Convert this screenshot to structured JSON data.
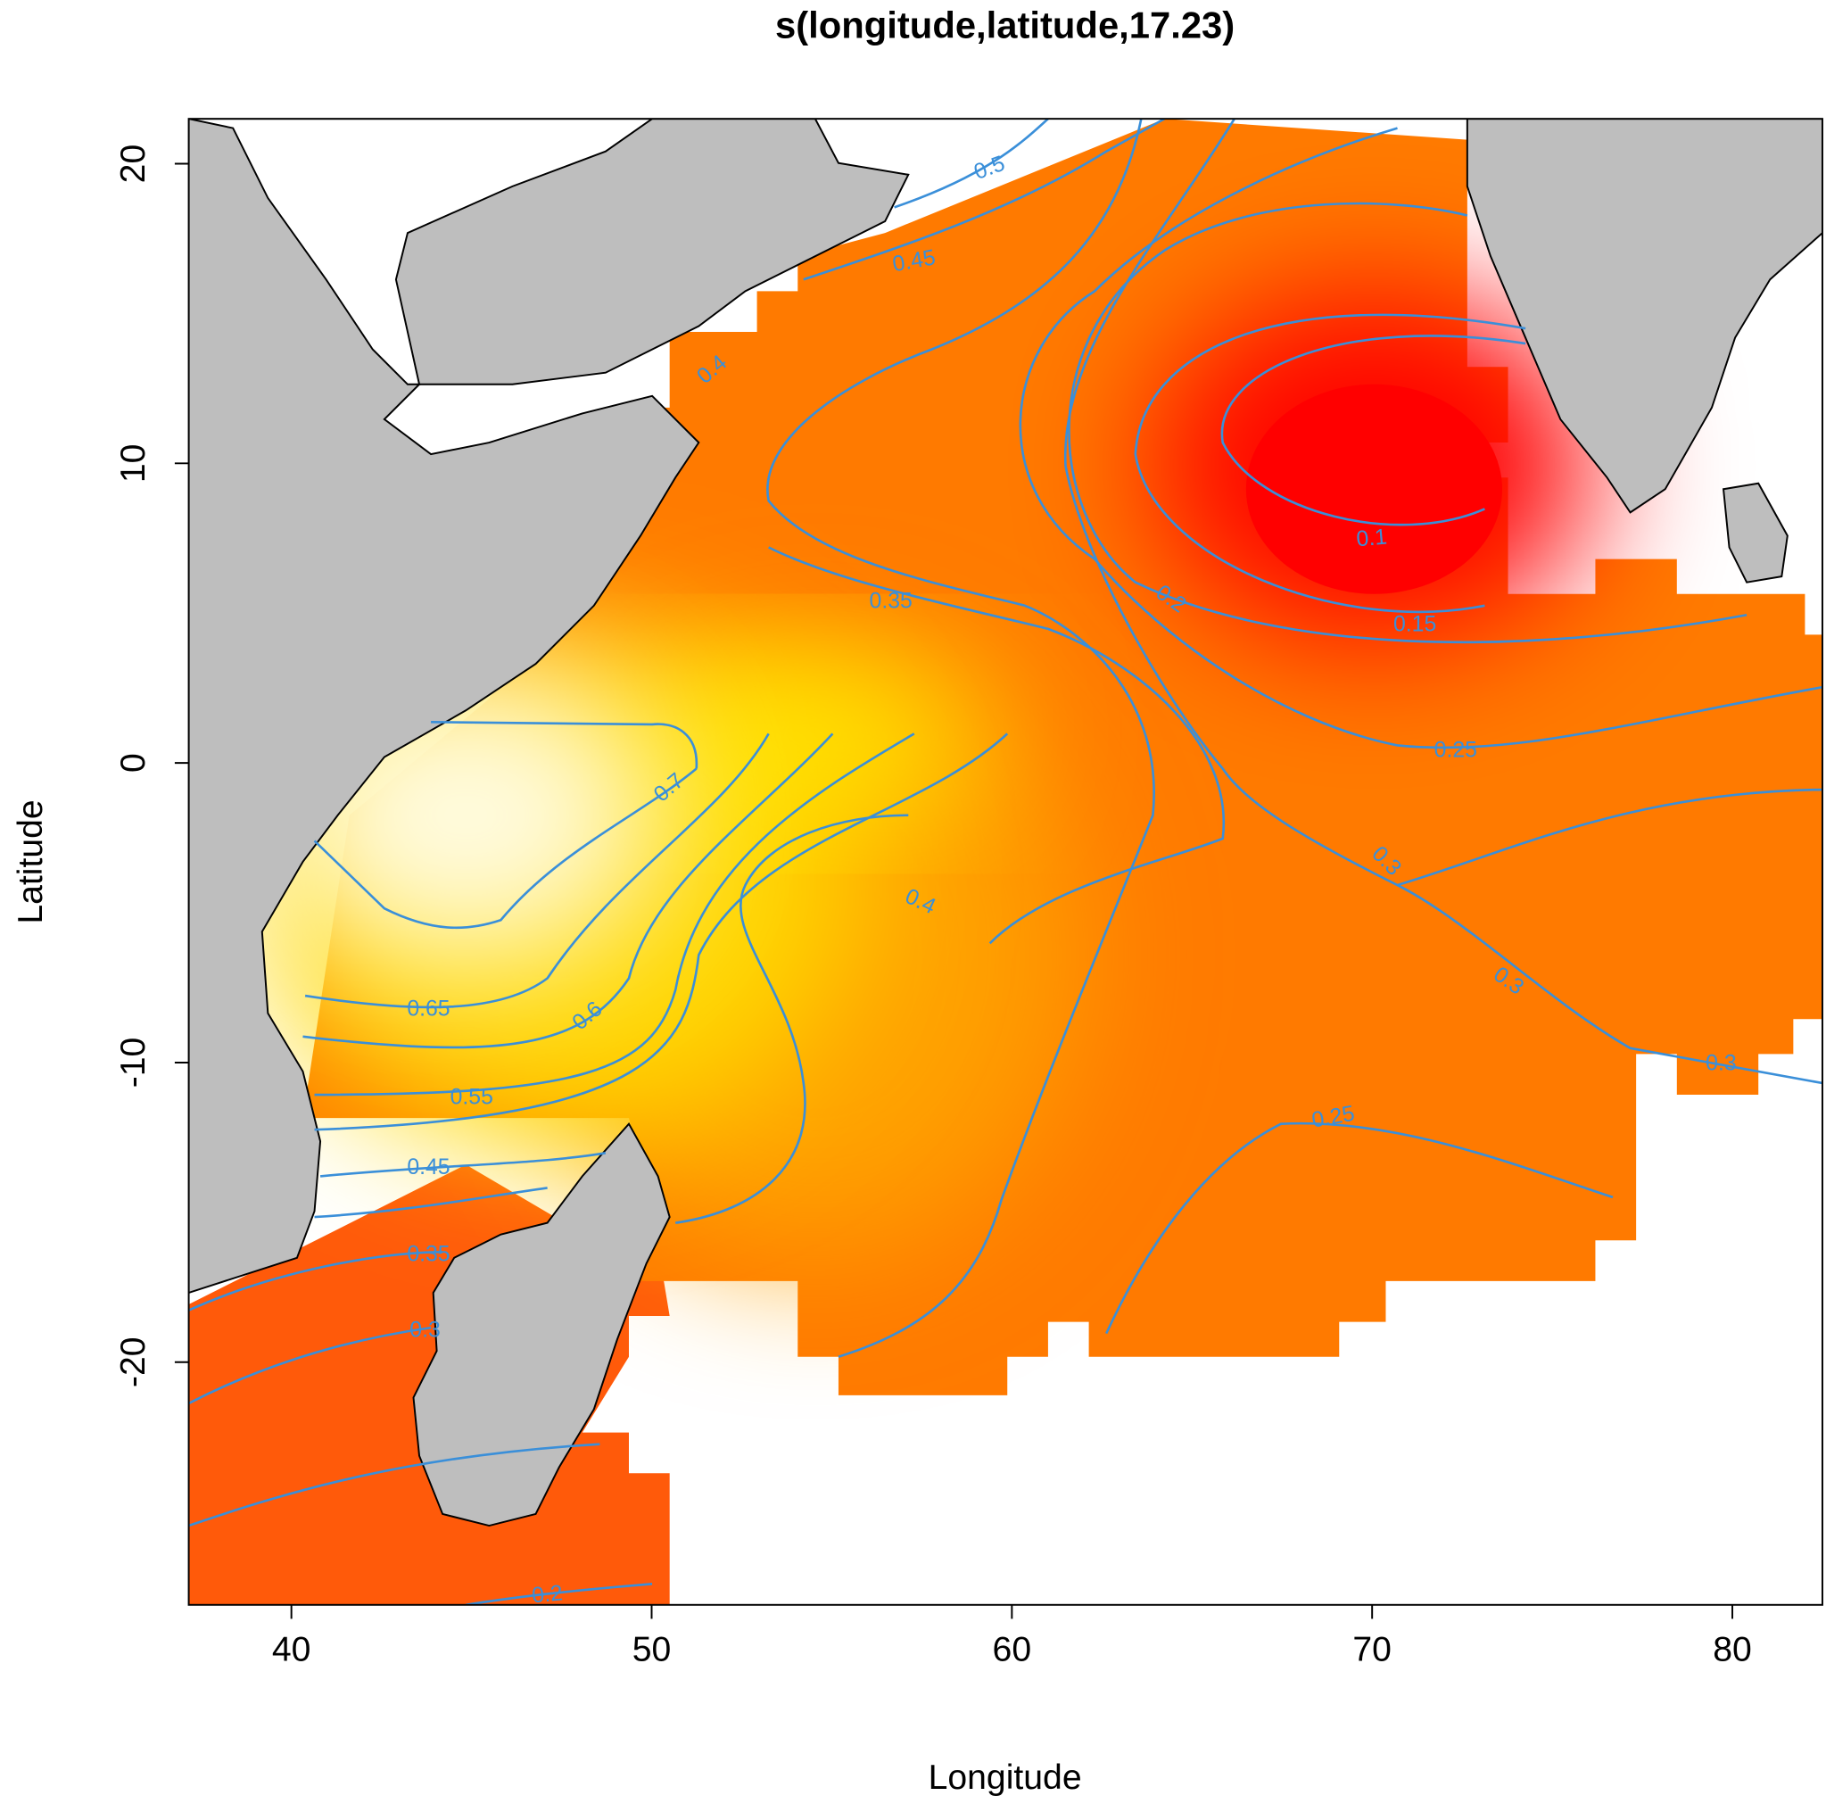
{
  "chart_data": {
    "type": "heatmap-contour",
    "title": "s(longitude,latitude,17.23)",
    "x_label": "Longitude",
    "y_label": "Latitude",
    "xlim": [
      37.15,
      82.5
    ],
    "ylim": [
      -28.1,
      21.5
    ],
    "xticks": [
      40,
      50,
      60,
      70,
      80
    ],
    "yticks": [
      -20,
      -10,
      0,
      10,
      20
    ],
    "contour_color": "#3a8fd9",
    "contour_labels": [
      0.5,
      0.45,
      0.4,
      0.1,
      0.2,
      0.35,
      0.15,
      0.25,
      0.7,
      0.3,
      0.4,
      0.3,
      0.65,
      0.6,
      0.3,
      0.55,
      0.25,
      0.45,
      0.35,
      0.3,
      0.2
    ]
  }
}
